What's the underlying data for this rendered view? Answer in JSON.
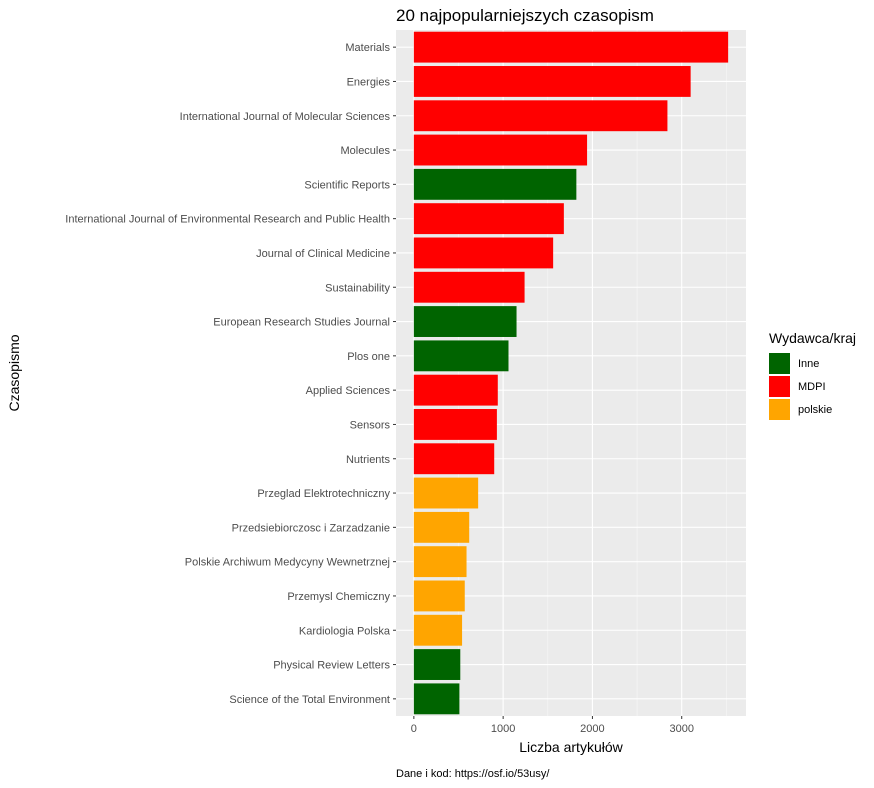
{
  "chart_data": {
    "type": "bar",
    "orientation": "horizontal",
    "title": "20 najpopularniejszych czasopism",
    "xlabel": "Liczba artykułów",
    "ylabel": "Czasopismo",
    "caption": "Dane i kod: https://osf.io/53usy/",
    "xlim": [
      -200,
      3720
    ],
    "xticks": [
      0,
      1000,
      2000,
      3000
    ],
    "grid": true,
    "legend": {
      "title": "Wydawca/kraj",
      "position": "right",
      "entries": [
        {
          "label": "Inne",
          "color": "#006400"
        },
        {
          "label": "MDPI",
          "color": "#ff0000"
        },
        {
          "label": "polskie",
          "color": "#ffa500"
        }
      ]
    },
    "categories": [
      "Materials",
      "Energies",
      "International Journal of Molecular Sciences",
      "Molecules",
      "Scientific Reports",
      "International Journal of Environmental Research and Public Health",
      "Journal of Clinical Medicine",
      "Sustainability",
      "European Research Studies Journal",
      "Plos one",
      "Applied Sciences",
      "Sensors",
      "Nutrients",
      "Przeglad Elektrotechniczny",
      "Przedsiebiorczosc i Zarzadzanie",
      "Polskie Archiwum Medycyny Wewnetrznej",
      "Przemysl Chemiczny",
      "Kardiologia Polska",
      "Physical Review Letters",
      "Science of the Total Environment"
    ],
    "values": [
      3520,
      3100,
      2840,
      1940,
      1820,
      1680,
      1560,
      1240,
      1150,
      1060,
      940,
      930,
      900,
      720,
      620,
      590,
      570,
      540,
      520,
      510
    ],
    "groups": [
      "MDPI",
      "MDPI",
      "MDPI",
      "MDPI",
      "Inne",
      "MDPI",
      "MDPI",
      "MDPI",
      "Inne",
      "Inne",
      "MDPI",
      "MDPI",
      "MDPI",
      "polskie",
      "polskie",
      "polskie",
      "polskie",
      "polskie",
      "Inne",
      "Inne"
    ]
  }
}
